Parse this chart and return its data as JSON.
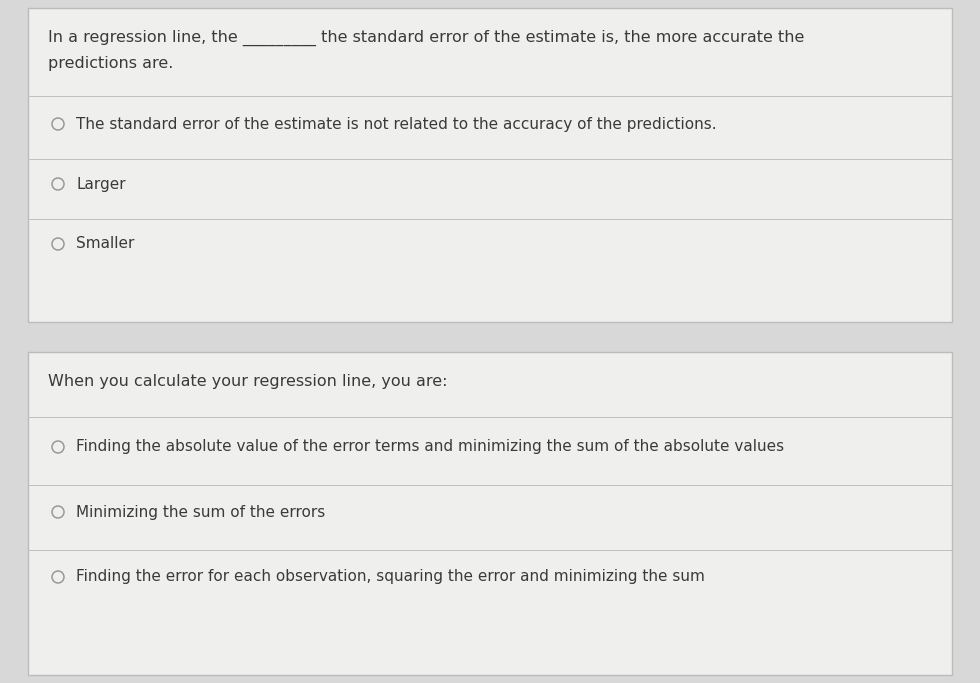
{
  "bg_color": "#d8d8d8",
  "card_color": "#efefed",
  "card_border_color": "#bbbbbb",
  "divider_color": "#c0c0bc",
  "text_color": "#3a3a3a",
  "radio_color": "#999999",
  "question1": {
    "question_text_line1": "In a regression line, the _________ the standard error of the estimate is, the more accurate the",
    "question_text_line2": "predictions are.",
    "options": [
      "The standard error of the estimate is not related to the accuracy of the predictions.",
      "Larger",
      "Smaller"
    ]
  },
  "question2": {
    "question_text": "When you calculate your regression line, you are:",
    "options": [
      "Finding the absolute value of the error terms and minimizing the sum of the absolute values",
      "Minimizing the sum of the errors",
      "Finding the error for each observation, squaring the error and minimizing the sum"
    ]
  },
  "figsize": [
    9.8,
    6.83
  ],
  "dpi": 100
}
